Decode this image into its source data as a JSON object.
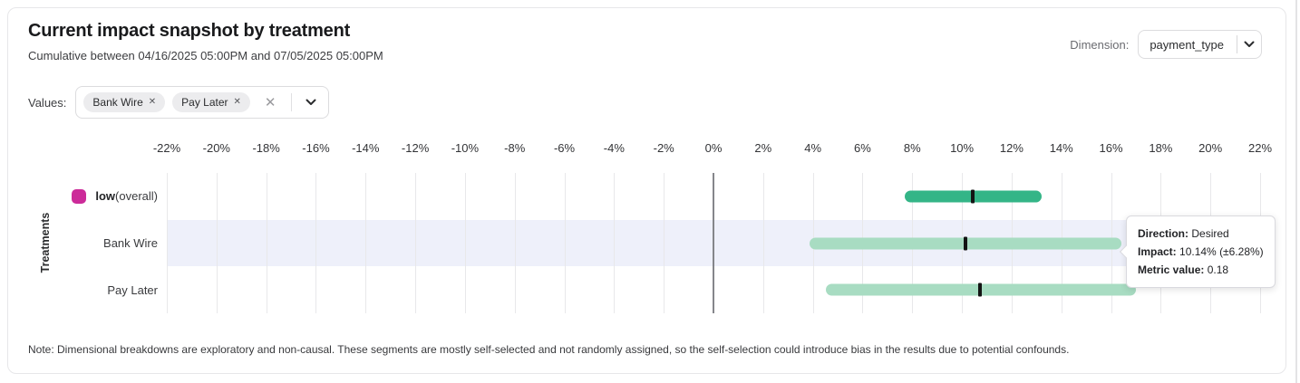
{
  "header": {
    "title": "Current impact snapshot by treatment",
    "subtitle": "Cumulative between 04/16/2025 05:00PM and 07/05/2025 05:00PM",
    "dimension_label": "Dimension:",
    "dimension_value": "payment_type"
  },
  "filters": {
    "values_label": "Values:",
    "chips": [
      {
        "label": "Bank Wire"
      },
      {
        "label": "Pay Later"
      }
    ],
    "remove_icon": "✕",
    "clear_icon": "✕"
  },
  "chart_data": {
    "type": "range-bar",
    "ylabel": "Treatments",
    "axis": {
      "min": -22,
      "max": 22,
      "step": 2,
      "unit": "%"
    },
    "grid": true,
    "rows": [
      {
        "label": "low",
        "label_suffix": " (overall)",
        "legend_color": "#cc2b99",
        "bar_color": "#34b587",
        "low": 7.7,
        "high": 13.2,
        "center": 10.45,
        "highlighted": false
      },
      {
        "label": "Bank Wire",
        "label_suffix": "",
        "bar_color": "#a8dcc2",
        "low": 3.86,
        "high": 16.42,
        "center": 10.14,
        "highlighted": true
      },
      {
        "label": "Pay Later",
        "label_suffix": "",
        "bar_color": "#a8dcc2",
        "low": 4.53,
        "high": 17.0,
        "center": 10.73,
        "highlighted": false
      }
    ]
  },
  "tooltip": {
    "direction_label": "Direction:",
    "direction_value": "Desired",
    "impact_label": "Impact:",
    "impact_value": "10.14% (±6.28%)",
    "metric_label": "Metric value:",
    "metric_value": "0.18"
  },
  "note": "Note: Dimensional breakdowns are exploratory and non-causal. These segments are mostly self-selected and not randomly assigned, so the self-selection could introduce bias in the results due to potential confounds.",
  "colors": {
    "highlight_band": "#eef0fa",
    "marker": "#141414",
    "zero_line": "#85868b",
    "gridline": "#e8e8ea"
  }
}
